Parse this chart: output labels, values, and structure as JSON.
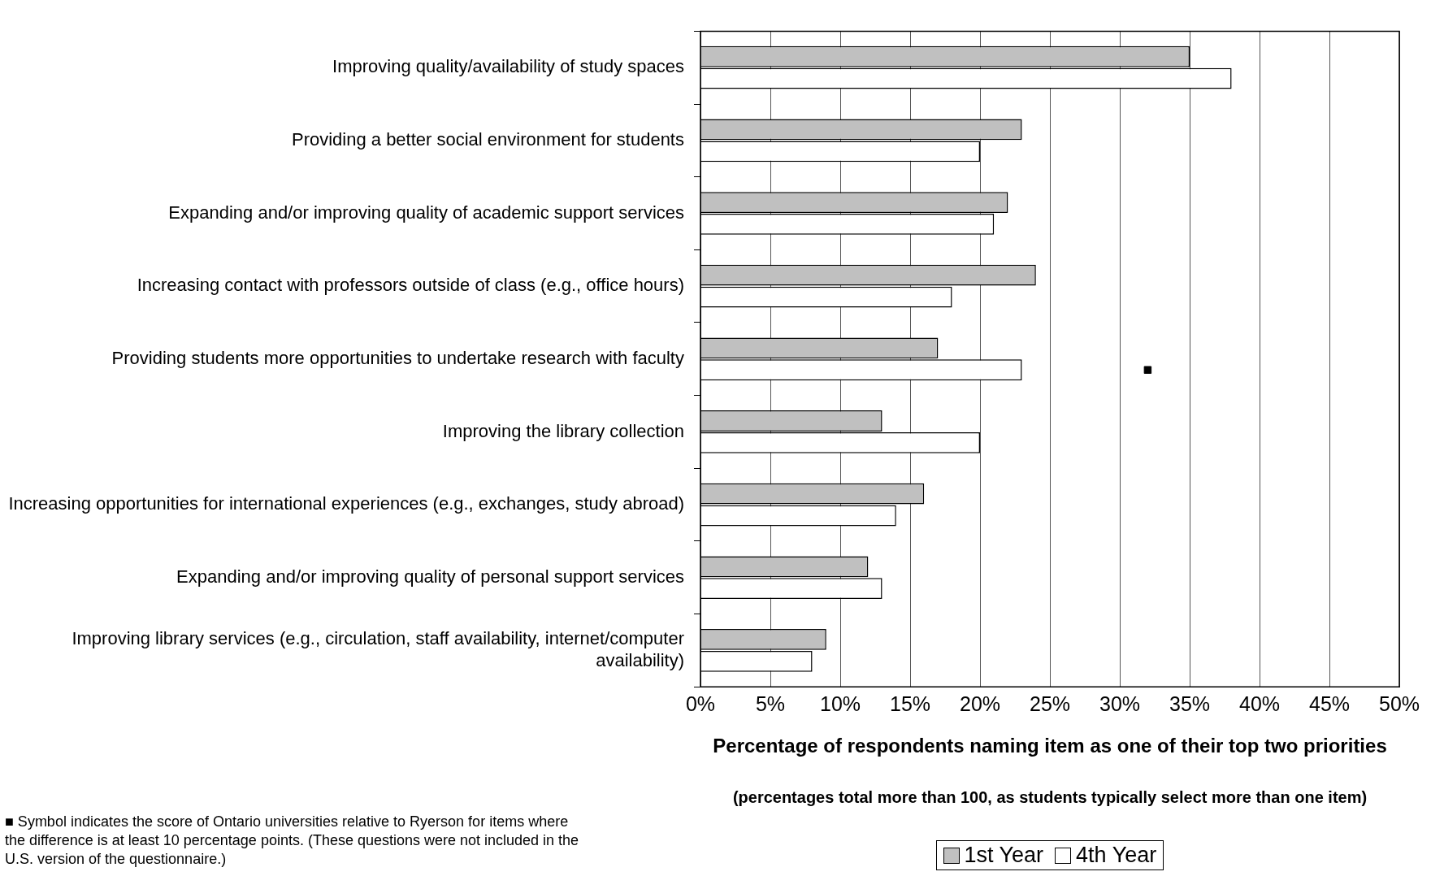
{
  "chart_data": {
    "type": "bar",
    "orientation": "horizontal",
    "categories": [
      "Improving quality/availability of study spaces",
      "Providing a better social environment for students",
      "Expanding and/or improving quality of academic support services",
      "Increasing contact with professors outside of class (e.g., office hours)",
      "Providing students more opportunities to undertake research with faculty",
      "Improving the library collection",
      "Increasing opportunities for international experiences (e.g., exchanges, study abroad)",
      "Expanding and/or improving quality of personal support services",
      "Improving library services (e.g., circulation, staff availability, internet/computer availability)"
    ],
    "series": [
      {
        "name": "1st Year",
        "color": "#c0c0c0",
        "values": [
          35,
          23,
          22,
          24,
          17,
          13,
          16,
          12,
          9
        ]
      },
      {
        "name": "4th Year",
        "color": "#ffffff",
        "values": [
          38,
          20,
          21,
          18,
          23,
          20,
          14,
          13,
          8
        ]
      },
      {
        "type": "scatter",
        "color": "#000000",
        "x": [
          "Providing students more opportunities to undertake research with faculty"
        ],
        "values": [
          32
        ]
      }
    ],
    "xlim": [
      0,
      50
    ],
    "xticks": [
      {
        "value": 0,
        "label": "0%"
      },
      {
        "value": 5,
        "label": "5%"
      },
      {
        "value": 10,
        "label": "10%"
      },
      {
        "value": 15,
        "label": "15%"
      },
      {
        "value": 20,
        "label": "20%"
      },
      {
        "value": 25,
        "label": "25%"
      },
      {
        "value": 30,
        "label": "30%"
      },
      {
        "value": 35,
        "label": "35%"
      },
      {
        "value": 40,
        "label": "40%"
      },
      {
        "value": 45,
        "label": "45%"
      },
      {
        "value": 50,
        "label": "50%"
      }
    ],
    "grid": "x",
    "legend": "bottom",
    "marker": "square",
    "xlabel": "Percentage of respondents naming item as one of their top two priorities",
    "annotations": [
      "(percentages total more than 100, as students typically select more than one item)",
      "■ Symbol indicates the score of Ontario universities relative to Ryerson for items where the difference is at least 10 percentage points.  (These questions were not included in the U.S. version of the questionnaire.)"
    ]
  }
}
